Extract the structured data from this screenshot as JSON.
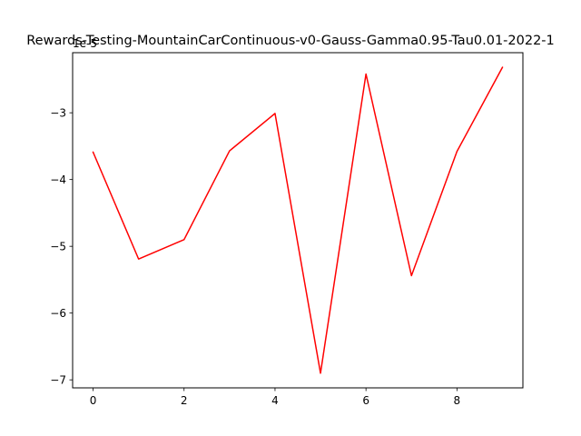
{
  "chart_data": {
    "type": "line",
    "title": "Rewards-Testing-MountainCarContinuous-v0-Gauss-Gamma0.95-Tau0.01-2022-1",
    "offset_label": "1e-5",
    "x": [
      0,
      1,
      2,
      3,
      4,
      5,
      6,
      7,
      8,
      9
    ],
    "series": [
      {
        "color": "#ff0000",
        "values": [
          -3.59,
          -5.19,
          -4.9,
          -3.57,
          -3.01,
          -6.9,
          -2.42,
          -5.44,
          -3.58,
          -2.32
        ]
      }
    ],
    "xticks": [
      0,
      2,
      4,
      6,
      8
    ],
    "yticks": [
      -7,
      -6,
      -5,
      -4,
      -3
    ],
    "xlim": [
      -0.45,
      9.45
    ],
    "ylim": [
      -7.12,
      -2.1
    ],
    "grid": false,
    "legend": "none"
  }
}
